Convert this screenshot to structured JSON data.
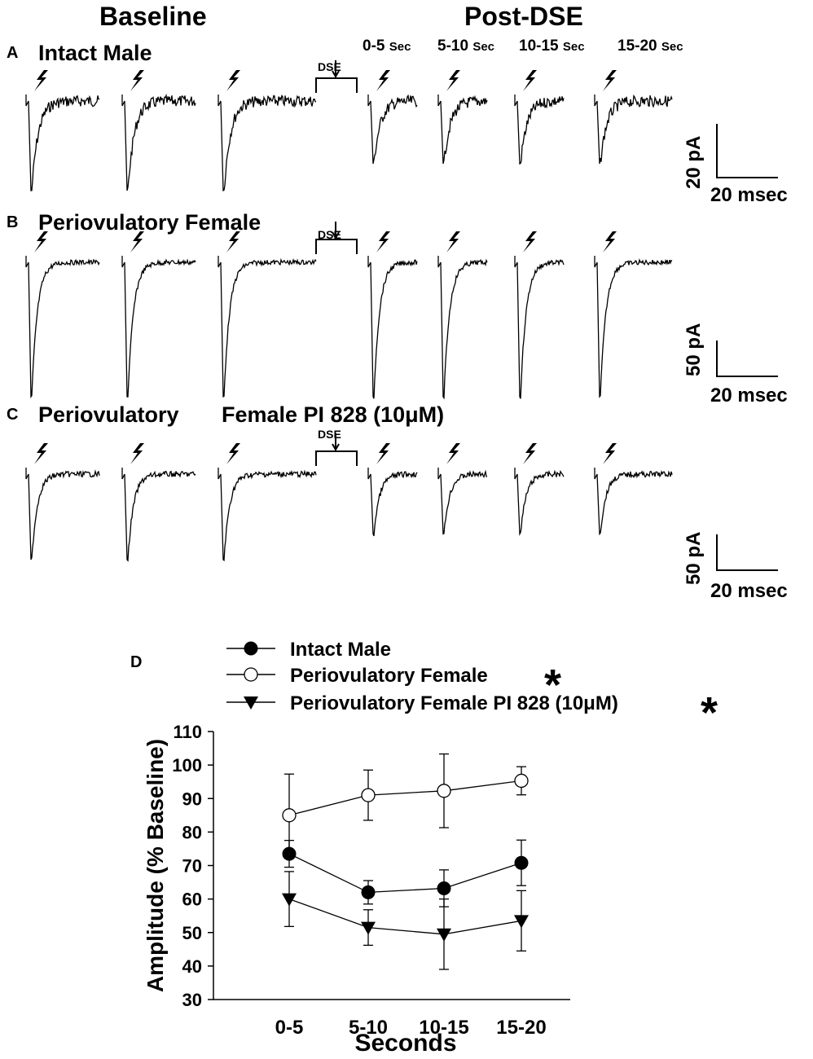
{
  "headers": {
    "baseline": "Baseline",
    "post": "Post-DSE"
  },
  "windows": [
    {
      "num": "0-5",
      "unit": "Sec"
    },
    {
      "num": "5-10",
      "unit": "Sec"
    },
    {
      "num": "10-15",
      "unit": "Sec"
    },
    {
      "num": "15-20",
      "unit": "Sec"
    }
  ],
  "panels": [
    {
      "letter": "A",
      "title": "Intact Male",
      "dse": "DSE",
      "scale_y": "20 pA",
      "scale_x": "20 msec"
    },
    {
      "letter": "B",
      "title": "Periovulatory Female",
      "dse": "DSE",
      "scale_y": "50 pA",
      "scale_x": "20 msec"
    },
    {
      "letter": "C",
      "title_a": "Periovulatory",
      "title_b": "Female PI 828 (10μM)",
      "dse": "DSE",
      "scale_y": "50 pA",
      "scale_x": "20 msec"
    }
  ],
  "panel_d_letter": "D",
  "chart_data": {
    "type": "line",
    "categories": [
      "0-5",
      "5-10",
      "10-15",
      "15-20"
    ],
    "xlabel": "Seconds",
    "ylabel": "Amplitude (% Baseline)",
    "ylim": [
      30,
      110
    ],
    "yticks": [
      30,
      40,
      50,
      60,
      70,
      80,
      90,
      100,
      110
    ],
    "grid": false,
    "legend_position": "top",
    "series": [
      {
        "name": "Intact Male",
        "marker": "filled-circle",
        "star": "",
        "values": [
          73.5,
          62,
          63.2,
          70.8
        ],
        "errors": [
          4,
          3.5,
          5.5,
          6.8
        ]
      },
      {
        "name": "Periovulatory Female",
        "marker": "open-circle",
        "star": "*",
        "values": [
          85,
          91,
          92.3,
          95.3
        ],
        "errors": [
          12.3,
          7.5,
          11,
          4.2
        ]
      },
      {
        "name": "Periovulatory Female PI 828 (10μM)",
        "marker": "filled-triangle-down",
        "star": "*",
        "values": [
          60,
          51.5,
          49.5,
          53.5
        ],
        "errors": [
          8.2,
          5.3,
          10.5,
          9
        ]
      }
    ]
  }
}
